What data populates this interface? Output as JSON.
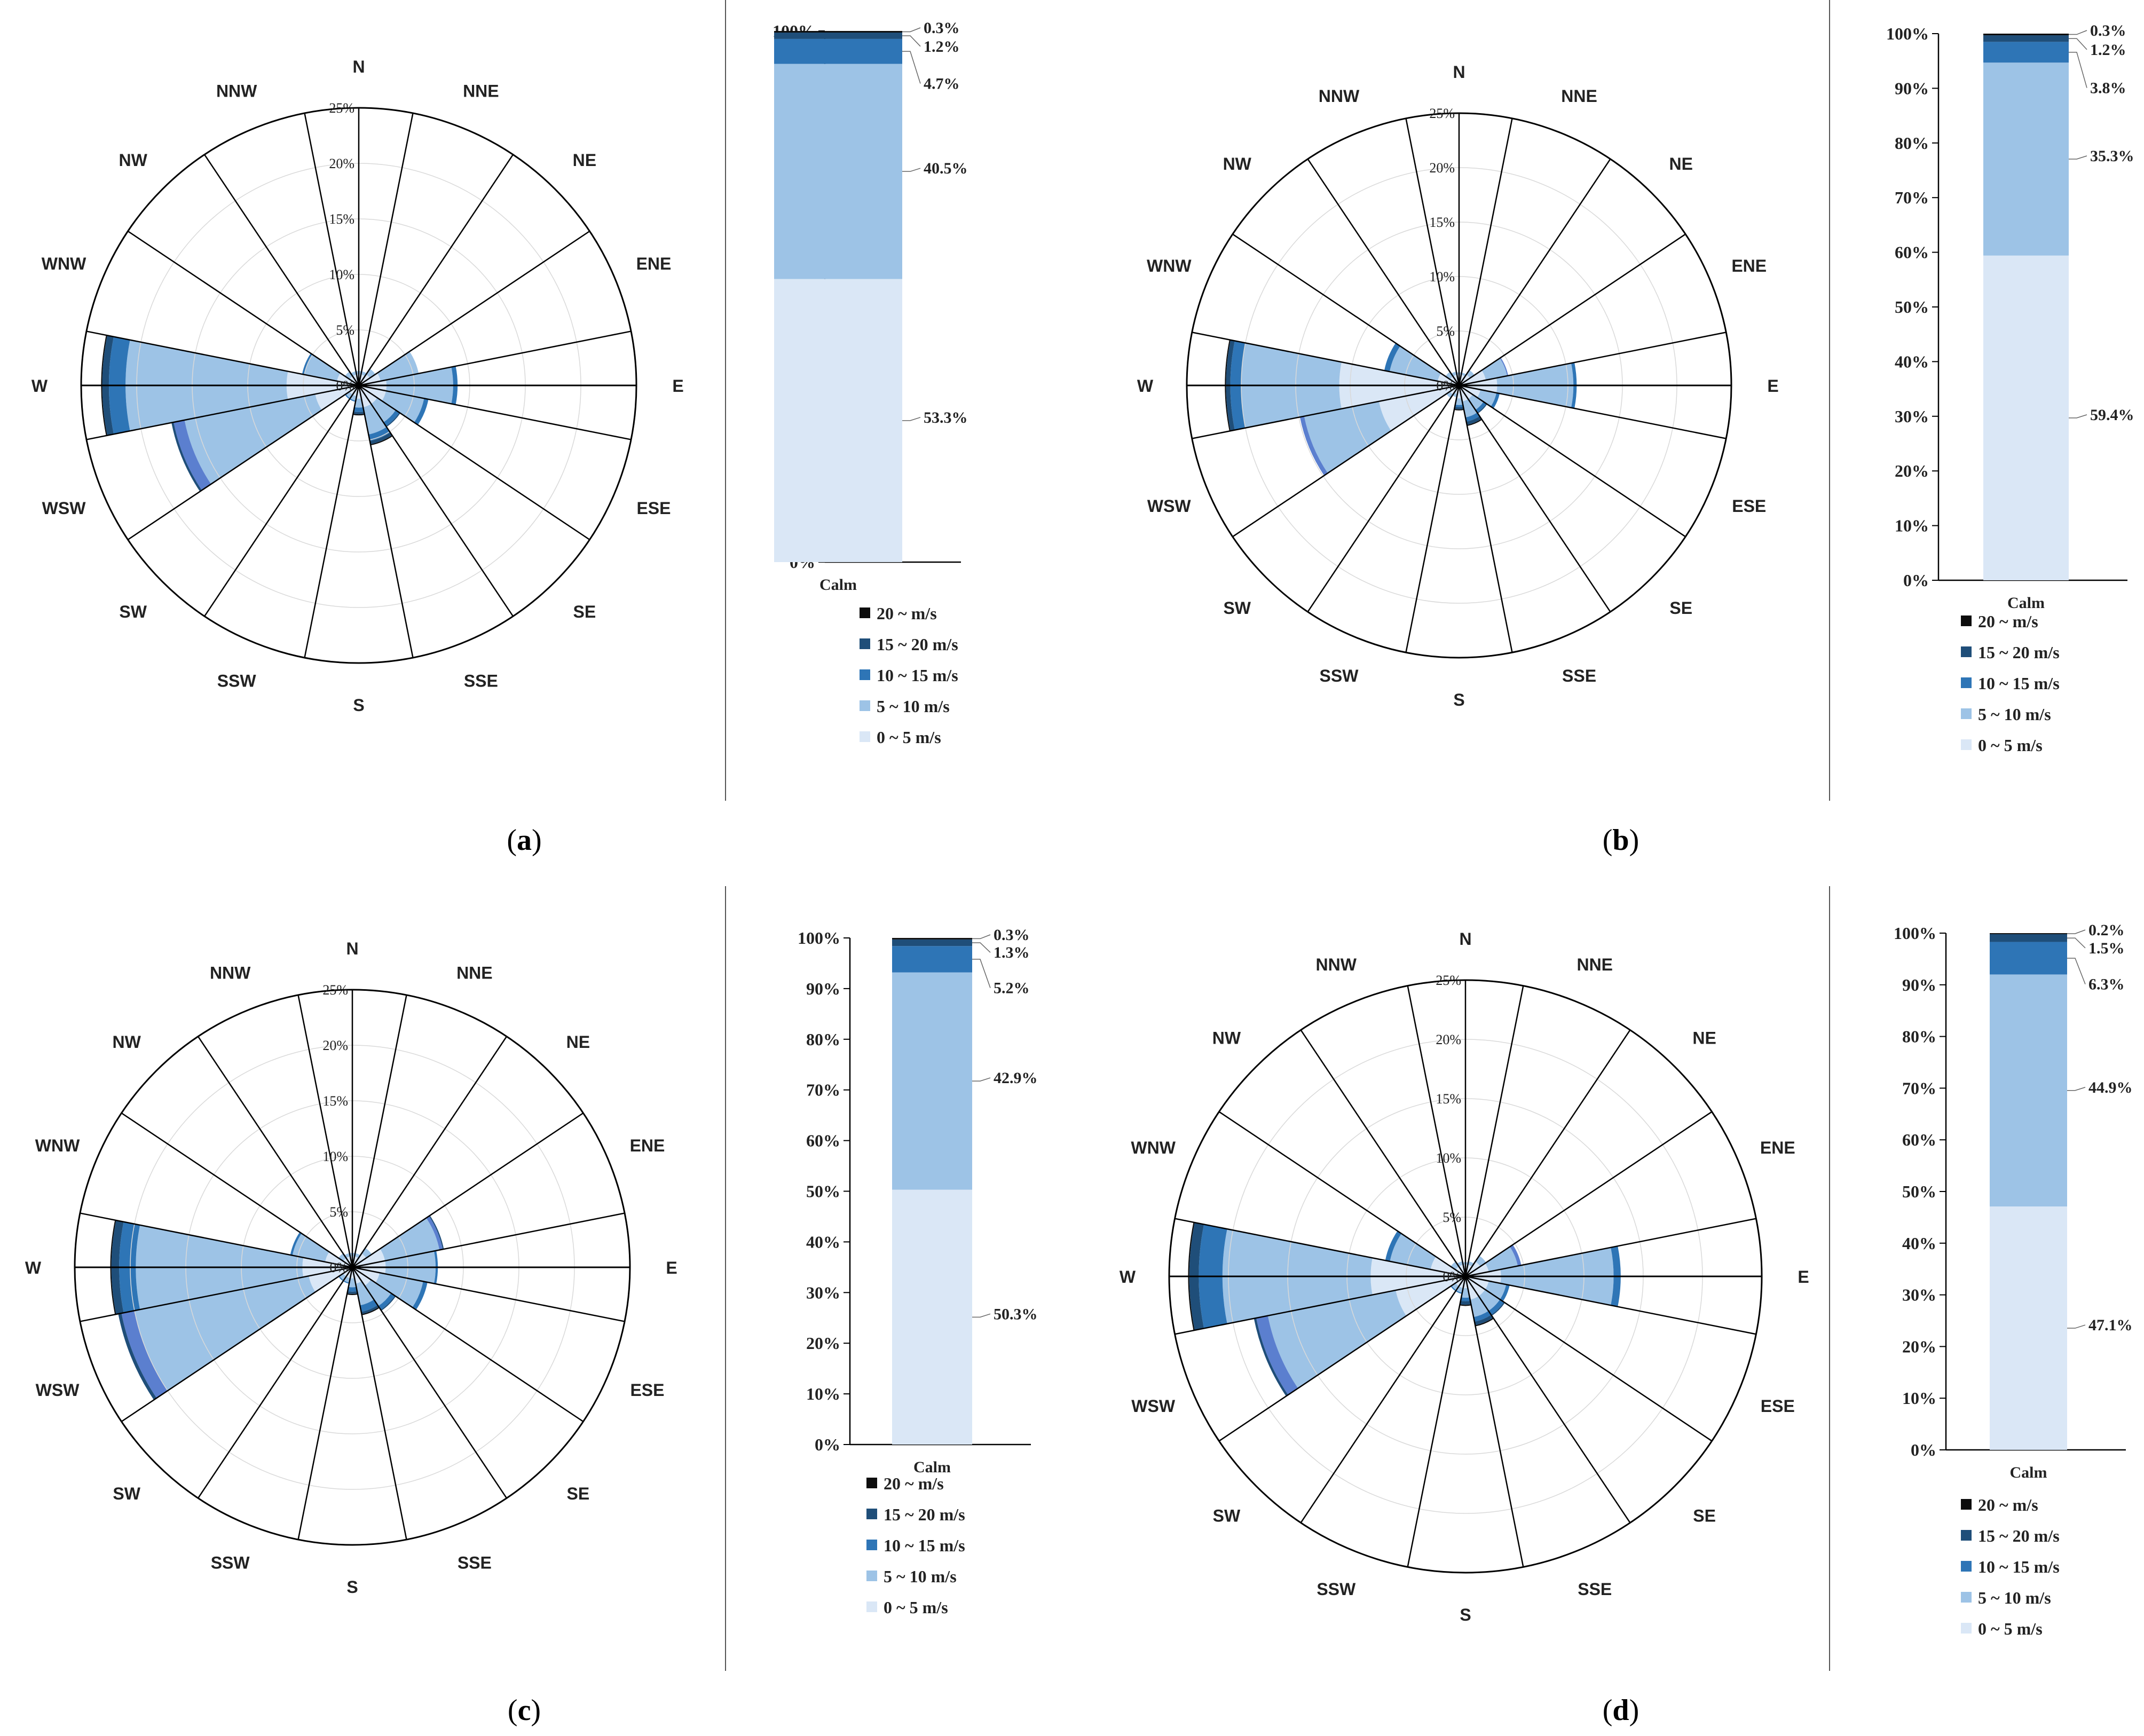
{
  "colors": {
    "bins": [
      "#dae7f6",
      "#9dc3e6",
      "#2e75b6",
      "#1f4e79",
      "#0d0d0d"
    ],
    "bins_rose": [
      "#dae7f6",
      "#9dc3e6",
      "#2e75b6",
      "#1f4e79",
      "#0d0d0d"
    ],
    "rose_alt_blue": "#5b7fcf",
    "grid": "#d9d9d9",
    "axis": "#000000"
  },
  "legend": [
    "20 ~ m/s",
    "15 ~ 20 m/s",
    "10 ~ 15 m/s",
    "5 ~ 10 m/s",
    "0 ~ 5 m/s"
  ],
  "bin_names": [
    "0 ~ 5 m/s",
    "5 ~ 10 m/s",
    "10 ~ 15 m/s",
    "15 ~ 20 m/s",
    "20 ~ m/s"
  ],
  "directions": [
    "N",
    "NNE",
    "NE",
    "ENE",
    "E",
    "ESE",
    "SE",
    "SSE",
    "S",
    "SSW",
    "SW",
    "WSW",
    "W",
    "WNW",
    "NW",
    "NNW"
  ],
  "radial_ticks": [
    "0%",
    "5%",
    "10%",
    "15%",
    "20%",
    "25%"
  ],
  "y_ticks": [
    "0%",
    "10%",
    "20%",
    "30%",
    "40%",
    "50%",
    "60%",
    "70%",
    "80%",
    "90%",
    "100%"
  ],
  "bar_category": "Calm",
  "chart_data": [
    {
      "panel": "a",
      "type": "wind-rose-with-stacked-bar",
      "rose": {
        "rmax": 25,
        "directions": [
          "N",
          "NNE",
          "NE",
          "ENE",
          "E",
          "ESE",
          "SE",
          "SSE",
          "S",
          "SSW",
          "SW",
          "WSW",
          "W",
          "WNW",
          "NW",
          "NNW"
        ],
        "series": [
          {
            "name": "0 ~ 5 m/s",
            "values": [
              1.0,
              1.0,
              1.2,
              2.0,
              2.5,
              2.5,
              2.0,
              2.0,
              1.2,
              1.0,
              1.0,
              4.0,
              6.5,
              2.0,
              1.0,
              1.0
            ]
          },
          {
            "name": "5 ~ 10 m/s",
            "values": [
              0.3,
              0.3,
              0.6,
              3.5,
              6.0,
              3.5,
              2.0,
              2.5,
              0.8,
              0.4,
              0.4,
              12.0,
              14.5,
              3.0,
              0.5,
              0.3
            ]
          },
          {
            "name": "10 ~ 15 m/s",
            "values": [
              0,
              0,
              0,
              0,
              0.4,
              0.4,
              0.4,
              0.6,
              0.4,
              0.1,
              0.1,
              1.0,
              1.5,
              0.2,
              0,
              0
            ]
          },
          {
            "name": "15 ~ 20 m/s",
            "values": [
              0,
              0,
              0,
              0,
              0,
              0,
              0.1,
              0.3,
              0.2,
              0,
              0,
              0.2,
              0.6,
              0,
              0,
              0
            ]
          },
          {
            "name": "20 ~ m/s",
            "values": [
              0,
              0,
              0,
              0,
              0,
              0,
              0,
              0.1,
              0.1,
              0,
              0,
              0,
              0.1,
              0,
              0,
              0
            ]
          }
        ]
      },
      "bar": {
        "category": "Calm",
        "values": [
          53.3,
          40.5,
          4.7,
          1.2,
          0.3
        ],
        "labels": [
          "53.3%",
          "40.5%",
          "4.7%",
          "1.2%",
          "0.3%"
        ]
      }
    },
    {
      "panel": "b",
      "type": "wind-rose-with-stacked-bar",
      "rose": {
        "rmax": 25,
        "directions": [
          "N",
          "NNE",
          "NE",
          "ENE",
          "E",
          "ESE",
          "SE",
          "SSE",
          "S",
          "SSW",
          "SW",
          "WSW",
          "W",
          "WNW",
          "NW",
          "NNW"
        ],
        "series": [
          {
            "name": "0 ~ 5 m/s",
            "values": [
              1.0,
              1.0,
              1.2,
              2.5,
              3.5,
              2.0,
              1.5,
              1.5,
              1.2,
              0.8,
              1.0,
              7.5,
              11.0,
              2.0,
              1.0,
              1.0
            ]
          },
          {
            "name": "5 ~ 10 m/s",
            "values": [
              0.2,
              0.2,
              0.5,
              2.0,
              7.0,
              1.5,
              1.2,
              1.5,
              0.6,
              0.3,
              0.4,
              7.0,
              9.0,
              4.5,
              0.5,
              0.3
            ]
          },
          {
            "name": "10 ~ 15 m/s",
            "values": [
              0,
              0,
              0,
              0.1,
              0.3,
              0.3,
              0.3,
              0.4,
              0.2,
              0,
              0,
              0.4,
              1.0,
              0.5,
              0,
              0
            ]
          },
          {
            "name": "15 ~ 20 m/s",
            "values": [
              0,
              0,
              0,
              0,
              0,
              0,
              0.1,
              0.3,
              0.2,
              0,
              0,
              0,
              0.4,
              0,
              0,
              0
            ]
          },
          {
            "name": "20 ~ m/s",
            "values": [
              0,
              0,
              0,
              0,
              0,
              0,
              0,
              0.1,
              0.1,
              0,
              0,
              0,
              0.1,
              0,
              0,
              0
            ]
          }
        ]
      },
      "bar": {
        "category": "Calm",
        "values": [
          59.4,
          35.3,
          3.8,
          1.2,
          0.3
        ],
        "labels": [
          "59.4%",
          "35.3%",
          "3.8%",
          "1.2%",
          "0.3%"
        ]
      }
    },
    {
      "panel": "c",
      "type": "wind-rose-with-stacked-bar",
      "rose": {
        "rmax": 25,
        "directions": [
          "N",
          "NNE",
          "NE",
          "ENE",
          "E",
          "ESE",
          "SE",
          "SSE",
          "S",
          "SSW",
          "SW",
          "WSW",
          "W",
          "WNW",
          "NW",
          "NNW"
        ],
        "series": [
          {
            "name": "0 ~ 5 m/s",
            "values": [
              1.0,
              1.0,
              1.5,
              3.0,
              3.0,
              2.5,
              2.0,
              1.5,
              1.0,
              1.0,
              1.0,
              4.0,
              4.5,
              2.5,
              1.0,
              1.0
            ]
          },
          {
            "name": "5 ~ 10 m/s",
            "values": [
              0.3,
              0.3,
              0.6,
              5.0,
              4.5,
              4.0,
              2.2,
              2.0,
              0.8,
              0.4,
              0.4,
              16.0,
              15.0,
              3.0,
              0.5,
              0.3
            ]
          },
          {
            "name": "10 ~ 15 m/s",
            "values": [
              0,
              0,
              0,
              0.3,
              0.2,
              0.4,
              0.4,
              0.6,
              0.4,
              0.1,
              0.1,
              1.2,
              1.5,
              0.2,
              0,
              0
            ]
          },
          {
            "name": "15 ~ 20 m/s",
            "values": [
              0,
              0,
              0,
              0.1,
              0,
              0,
              0.1,
              0.2,
              0.2,
              0,
              0,
              0.3,
              0.7,
              0,
              0,
              0
            ]
          },
          {
            "name": "20 ~ m/s",
            "values": [
              0,
              0,
              0,
              0,
              0,
              0,
              0,
              0.1,
              0.1,
              0,
              0,
              0,
              0.1,
              0,
              0,
              0
            ]
          }
        ]
      },
      "bar": {
        "category": "Calm",
        "values": [
          50.3,
          42.9,
          5.2,
          1.3,
          0.3
        ],
        "labels": [
          "50.3%",
          "42.9%",
          "5.2%",
          "1.3%",
          "0.3%"
        ]
      }
    },
    {
      "panel": "d",
      "type": "wind-rose-with-stacked-bar",
      "rose": {
        "rmax": 25,
        "directions": [
          "N",
          "NNE",
          "NE",
          "ENE",
          "E",
          "ESE",
          "SE",
          "SSE",
          "S",
          "SSW",
          "SW",
          "WSW",
          "W",
          "WNW",
          "NW",
          "NNW"
        ],
        "series": [
          {
            "name": "0 ~ 5 m/s",
            "values": [
              1.0,
              1.0,
              1.5,
              2.0,
              3.0,
              2.0,
              2.0,
              2.0,
              1.0,
              1.0,
              1.0,
              6.0,
              8.0,
              3.0,
              1.0,
              1.0
            ]
          },
          {
            "name": "5 ~ 10 m/s",
            "values": [
              0.2,
              0.3,
              0.6,
              2.5,
              9.5,
              1.5,
              1.5,
              1.5,
              0.8,
              0.4,
              0.4,
              11.0,
              12.5,
              3.5,
              0.5,
              0.3
            ]
          },
          {
            "name": "10 ~ 15 m/s",
            "values": [
              0,
              0,
              0,
              0.3,
              0.6,
              0.3,
              0.4,
              0.4,
              0.3,
              0.1,
              0.1,
              1.0,
              2.0,
              0.4,
              0,
              0
            ]
          },
          {
            "name": "15 ~ 20 m/s",
            "values": [
              0,
              0,
              0,
              0,
              0,
              0,
              0.1,
              0.3,
              0.3,
              0,
              0,
              0.2,
              0.8,
              0,
              0,
              0
            ]
          },
          {
            "name": "20 ~ m/s",
            "values": [
              0,
              0,
              0,
              0,
              0,
              0,
              0,
              0.1,
              0.1,
              0,
              0,
              0,
              0.1,
              0,
              0,
              0
            ]
          }
        ]
      },
      "bar": {
        "category": "Calm",
        "values": [
          47.1,
          44.9,
          6.3,
          1.5,
          0.2
        ],
        "labels": [
          "47.1%",
          "44.9%",
          "6.3%",
          "1.5%",
          "0.2%"
        ]
      }
    }
  ],
  "panel_labels": [
    "a",
    "b",
    "c",
    "d"
  ]
}
